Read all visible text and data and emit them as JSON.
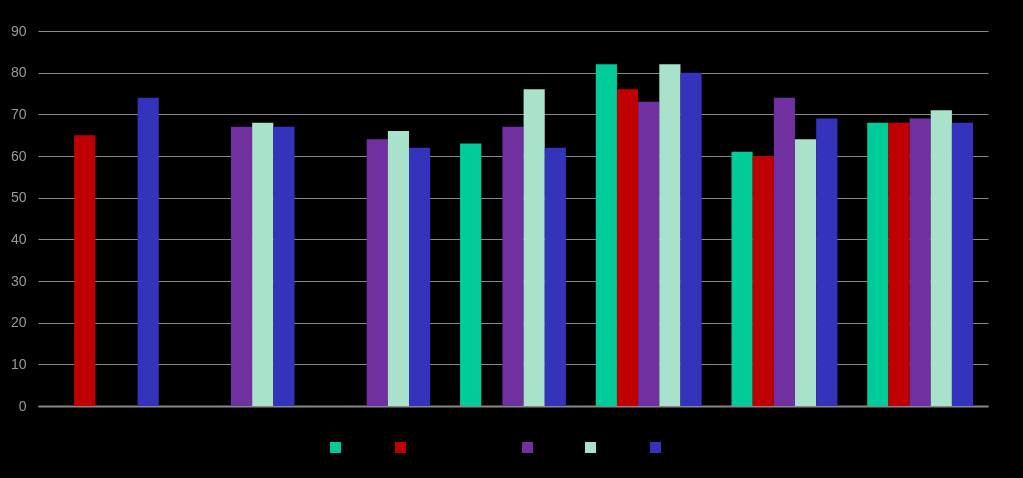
{
  "chart_data": {
    "type": "bar",
    "categories": [
      null,
      null,
      null,
      null,
      null,
      null,
      null
    ],
    "series": [
      {
        "color": "#00cc99",
        "values": [
          null,
          null,
          null,
          63,
          82,
          61,
          68
        ]
      },
      {
        "color": "#c00000",
        "values": [
          65,
          null,
          null,
          null,
          76,
          60,
          68
        ]
      },
      {
        "color": "#7030a0",
        "values": [
          null,
          67,
          64,
          67,
          73,
          74,
          69
        ]
      },
      {
        "color": "#a9e2cb",
        "values": [
          null,
          68,
          66,
          76,
          82,
          64,
          71
        ]
      },
      {
        "color": "#3333bb",
        "values": [
          74,
          67,
          62,
          62,
          80,
          69,
          68
        ]
      }
    ],
    "ylim": [
      0,
      90
    ],
    "yticks": [
      0,
      10,
      20,
      30,
      40,
      50,
      60,
      70,
      80,
      90
    ],
    "grid": "y"
  }
}
